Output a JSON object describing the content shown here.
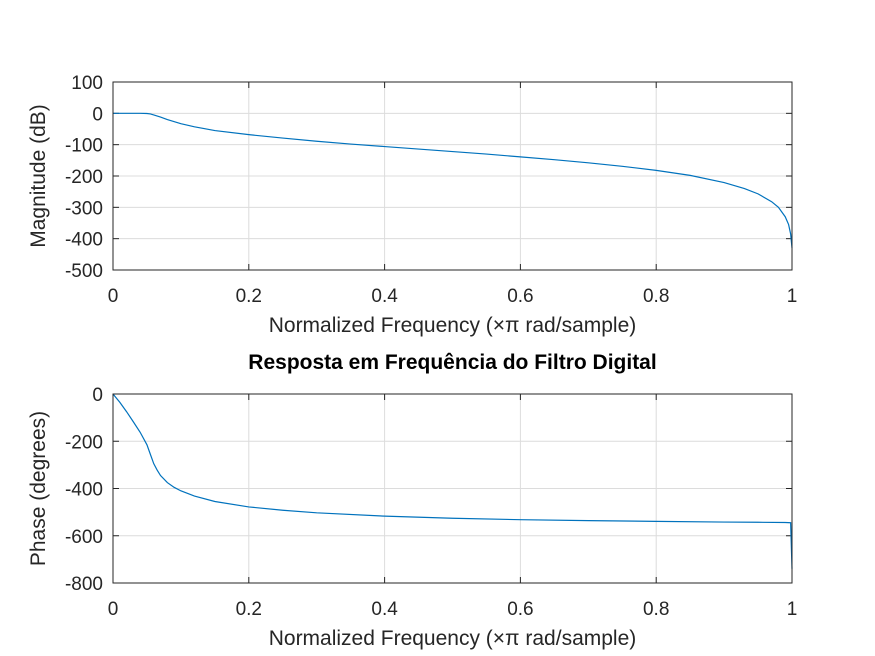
{
  "chart_data": [
    {
      "type": "line",
      "title": "",
      "xlabel": "Normalized Frequency (×π rad/sample)",
      "ylabel": "Magnitude (dB)",
      "xlim": [
        0,
        1
      ],
      "ylim": [
        -500,
        100
      ],
      "xticks": [
        "0",
        "0.2",
        "0.4",
        "0.6",
        "0.8",
        "1"
      ],
      "yticks": [
        "100",
        "0",
        "-100",
        "-200",
        "-300",
        "-400",
        "-500"
      ],
      "grid": true,
      "series_color": "#0072bd",
      "x": [
        0,
        0.02,
        0.04,
        0.05,
        0.055,
        0.06,
        0.07,
        0.08,
        0.1,
        0.12,
        0.15,
        0.2,
        0.25,
        0.3,
        0.35,
        0.4,
        0.45,
        0.5,
        0.55,
        0.6,
        0.65,
        0.7,
        0.75,
        0.8,
        0.85,
        0.9,
        0.93,
        0.95,
        0.97,
        0.98,
        0.99,
        0.995,
        0.998,
        1.0
      ],
      "y": [
        0,
        0,
        0,
        -0.5,
        -2,
        -5,
        -12,
        -20,
        -33,
        -43,
        -55,
        -68,
        -79,
        -89,
        -98,
        -106,
        -114,
        -122,
        -130,
        -139,
        -148,
        -158,
        -169,
        -182,
        -198,
        -221,
        -240,
        -257,
        -282,
        -300,
        -330,
        -355,
        -385,
        -430
      ]
    },
    {
      "type": "line",
      "title": "Resposta em Frequência do Filtro Digital",
      "xlabel": "Normalized Frequency (×π rad/sample)",
      "ylabel": "Phase (degrees)",
      "xlim": [
        0,
        1
      ],
      "ylim": [
        -800,
        0
      ],
      "xticks": [
        "0",
        "0.2",
        "0.4",
        "0.6",
        "0.8",
        "1"
      ],
      "yticks": [
        "0",
        "-200",
        "-400",
        "-600",
        "-800"
      ],
      "grid": true,
      "series_color": "#0072bd",
      "x": [
        0,
        0.01,
        0.02,
        0.03,
        0.04,
        0.05,
        0.055,
        0.06,
        0.065,
        0.07,
        0.08,
        0.09,
        0.1,
        0.12,
        0.15,
        0.2,
        0.25,
        0.3,
        0.4,
        0.5,
        0.6,
        0.7,
        0.8,
        0.9,
        0.95,
        0.99,
        0.998,
        1.0
      ],
      "y": [
        0,
        -35,
        -75,
        -118,
        -162,
        -215,
        -255,
        -295,
        -322,
        -345,
        -375,
        -395,
        -410,
        -432,
        -455,
        -478,
        -492,
        -503,
        -517,
        -526,
        -532,
        -536,
        -539,
        -542,
        -543,
        -544,
        -545,
        -740
      ]
    }
  ]
}
